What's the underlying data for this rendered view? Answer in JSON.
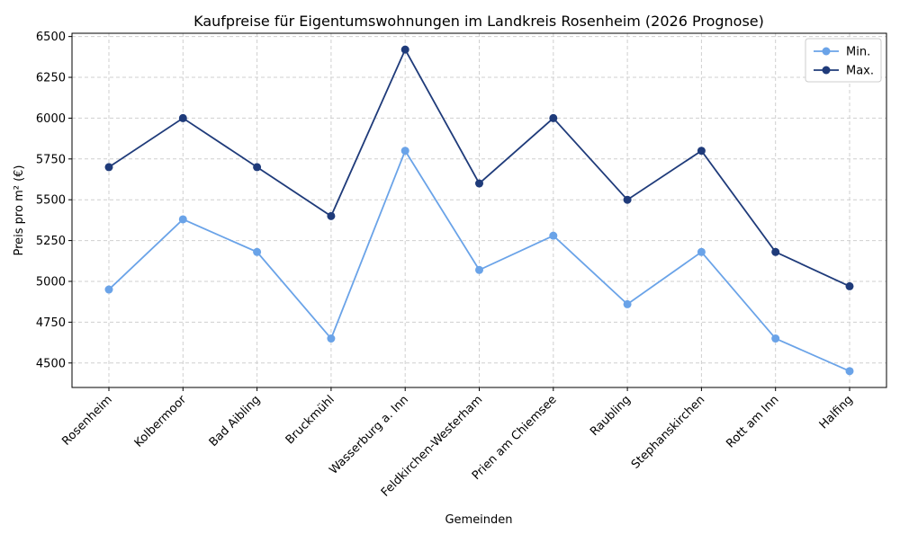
{
  "chart_data": {
    "type": "line",
    "title": "Kaufpreise für Eigentumswohnungen im Landkreis Rosenheim (2026 Prognose)",
    "xlabel": "Gemeinden",
    "ylabel": "Preis pro m² (€)",
    "categories": [
      "Rosenheim",
      "Kolbermoor",
      "Bad Aibling",
      "Bruckmühl",
      "Wasserburg a. Inn",
      "Feldkirchen-Westerham",
      "Prien am Chiemsee",
      "Raubling",
      "Stephanskirchen",
      "Rott am Inn",
      "Halfing"
    ],
    "series": [
      {
        "name": "Min.",
        "color": "#6aa3e8",
        "values": [
          4950,
          5380,
          5180,
          4650,
          5800,
          5070,
          5280,
          4860,
          5180,
          4650,
          4450
        ]
      },
      {
        "name": "Max.",
        "color": "#1f3b7a",
        "values": [
          5700,
          6000,
          5700,
          5400,
          6420,
          5600,
          6000,
          5500,
          5800,
          5180,
          4970
        ]
      }
    ],
    "ylim": [
      4350,
      6520
    ],
    "yticks": [
      4500,
      4750,
      5000,
      5250,
      5500,
      5750,
      6000,
      6250,
      6500
    ],
    "grid": true,
    "grid_style": "dashed",
    "legend_position": "top-right",
    "markers": "circle"
  }
}
